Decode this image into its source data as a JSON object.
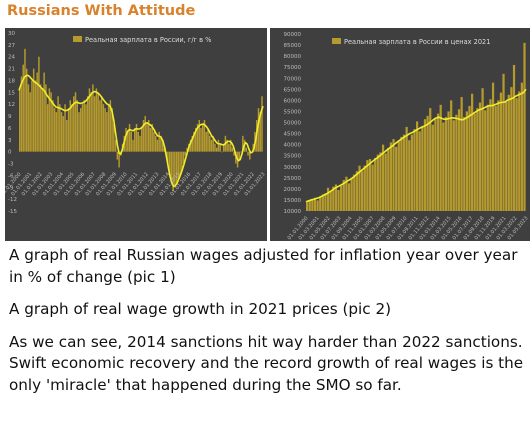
{
  "channel": {
    "name": "Russians With Attitude"
  },
  "colors": {
    "bar": "#b59a2e",
    "line": "#f0ee2a",
    "panel": "#3f3f3f",
    "axis_text": "#bdbdbd",
    "header": "#d9822b"
  },
  "chart_data": [
    {
      "type": "bar",
      "legend": "Реальная зарплата в России, г/г в %",
      "legend_position": "top",
      "yticks": [
        30,
        27,
        24,
        21,
        18,
        15,
        12,
        9,
        6,
        3,
        0,
        -3,
        -6,
        -9,
        -12,
        -15
      ],
      "ylim": [
        -15,
        30
      ],
      "xtick_labels": [
        "01.01.2000",
        "01.01.2001",
        "01.01.2002",
        "01.01.2003",
        "01.01.2004",
        "01.01.2005",
        "01.01.2006",
        "01.01.2007",
        "01.01.2008",
        "01.01.2009",
        "01.01.2010",
        "01.01.2011",
        "01.01.2012",
        "01.01.2013",
        "01.01.2014",
        "01.01.2015",
        "01.01.2016",
        "01.01.2017",
        "01.01.2018",
        "01.01.2019",
        "01.01.2020",
        "01.01.2021",
        "01.01.2022",
        "01.01.2023"
      ],
      "grid": false,
      "series": [
        {
          "kind": "bar",
          "values": [
            16,
            19,
            22,
            26,
            21,
            17,
            15,
            18,
            21,
            18,
            20,
            24,
            17,
            16,
            20,
            17,
            12,
            16,
            15,
            13,
            11,
            10,
            14,
            12,
            10,
            9,
            12,
            8,
            11,
            13,
            12,
            14,
            15,
            13,
            10,
            11,
            12,
            13,
            12,
            14,
            16,
            15,
            17,
            14,
            16,
            15,
            13,
            14,
            12,
            11,
            10,
            12,
            13,
            11,
            7,
            3,
            -2,
            -4,
            -1,
            2,
            4,
            6,
            5,
            7,
            5,
            3,
            6,
            7,
            5,
            4,
            6,
            8,
            9,
            7,
            8,
            6,
            7,
            5,
            4,
            3,
            5,
            4,
            3,
            1,
            -1,
            -3,
            -6,
            -8,
            -10,
            -9,
            -8,
            -7,
            -6,
            -5,
            -3,
            -1,
            1,
            2,
            3,
            4,
            5,
            6,
            7,
            8,
            6,
            7,
            8,
            5,
            6,
            4,
            3,
            4,
            2,
            1,
            3,
            2,
            0,
            2,
            4,
            3,
            2,
            3,
            1,
            -1,
            -3,
            -4,
            -2,
            0,
            4,
            3,
            1,
            -1,
            -2,
            0,
            2,
            5,
            8,
            11,
            10,
            14
          ]
        },
        {
          "kind": "line",
          "values": [
            15.5,
            16.8,
            17.9,
            18.8,
            19.2,
            19.3,
            19.0,
            18.5,
            18.0,
            17.6,
            17.3,
            16.9,
            16.5,
            16.0,
            15.6,
            15.0,
            14.2,
            13.6,
            13.0,
            12.4,
            11.8,
            11.3,
            11.2,
            11.0,
            10.9,
            10.6,
            10.4,
            10.4,
            10.6,
            10.9,
            11.5,
            12.0,
            12.4,
            12.5,
            12.3,
            12.2,
            12.3,
            12.5,
            12.8,
            13.3,
            13.9,
            14.5,
            15.0,
            15.2,
            15.1,
            14.8,
            14.4,
            13.8,
            13.2,
            12.6,
            12.1,
            11.9,
            11.4,
            10.2,
            7.9,
            4.8,
            1.8,
            -0.4,
            -0.6,
            0.8,
            2.6,
            4.2,
            5.2,
            5.6,
            5.4,
            5.3,
            5.6,
            5.8,
            5.7,
            5.8,
            6.1,
            6.7,
            7.2,
            7.3,
            7.0,
            6.7,
            6.2,
            5.5,
            4.6,
            4.0,
            3.9,
            3.6,
            2.7,
            1.1,
            -1.3,
            -3.8,
            -6.2,
            -7.8,
            -8.8,
            -8.6,
            -8.0,
            -7.0,
            -5.9,
            -4.6,
            -3.2,
            -1.6,
            0.0,
            1.4,
            2.5,
            3.5,
            4.5,
            5.5,
            6.2,
            6.7,
            6.9,
            7.0,
            6.7,
            6.2,
            5.5,
            4.6,
            3.8,
            3.3,
            2.6,
            2.1,
            2.0,
            1.9,
            1.7,
            1.8,
            2.3,
            2.6,
            2.6,
            2.3,
            1.5,
            0.0,
            -1.5,
            -2.3,
            -2.0,
            -0.6,
            1.3,
            2.3,
            1.9,
            0.6,
            -0.3,
            -0.1,
            1.1,
            3.4,
            6.2,
            8.5,
            10.2,
            11.5
          ]
        }
      ]
    },
    {
      "type": "bar",
      "legend": "Реальная зарплата в России в ценах 2021",
      "legend_position": "top",
      "yticks": [
        90000,
        85000,
        80000,
        75000,
        70000,
        65000,
        60000,
        55000,
        50000,
        45000,
        40000,
        35000,
        30000,
        25000,
        20000,
        15000,
        10000
      ],
      "ylim": [
        10000,
        90000
      ],
      "xtick_labels": [
        "01.01.2000",
        "01.03.2001",
        "01.05.2002",
        "01.07.2003",
        "01.09.2004",
        "01.11.2005",
        "01.01.2007",
        "01.03.2008",
        "01.05.2009",
        "01.07.2010",
        "01.09.2011",
        "01.11.2012",
        "01.01.2014",
        "01.03.2015",
        "01.05.2016",
        "01.07.2017",
        "01.09.2018",
        "01.11.2019",
        "01.01.2021",
        "01.03.2022",
        "01.05.2023"
      ],
      "grid": false,
      "series": [
        {
          "kind": "bar",
          "values": [
            14000,
            14500,
            15500,
            16000,
            14800,
            16500,
            17500,
            18000,
            20500,
            19000,
            21000,
            22000,
            19500,
            21500,
            24000,
            25500,
            22500,
            25000,
            26500,
            28000,
            30500,
            28000,
            30500,
            33000,
            33500,
            31000,
            34000,
            35500,
            36500,
            40000,
            36000,
            38500,
            41000,
            42500,
            39000,
            41500,
            43500,
            44500,
            48000,
            42000,
            44500,
            47000,
            50500,
            46000,
            48500,
            51500,
            53000,
            56500,
            49000,
            51500,
            54000,
            58000,
            50000,
            52500,
            55000,
            60000,
            51000,
            53500,
            56000,
            61500,
            52500,
            55000,
            57500,
            63000,
            54000,
            56500,
            59000,
            65500,
            55500,
            58000,
            60500,
            68000,
            57500,
            60000,
            63500,
            72000,
            59500,
            62500,
            66000,
            76000,
            61000,
            64000,
            68000,
            86000
          ]
        },
        {
          "kind": "line",
          "values": [
            14200,
            14600,
            15000,
            15300,
            15700,
            16100,
            16700,
            17300,
            17900,
            18700,
            19500,
            20400,
            21000,
            21600,
            22300,
            23100,
            23800,
            24500,
            25400,
            26400,
            27400,
            28400,
            29400,
            30400,
            31300,
            32300,
            33300,
            34100,
            35100,
            36100,
            37000,
            38000,
            38900,
            39800,
            40800,
            41700,
            42500,
            43400,
            44100,
            44900,
            45400,
            46100,
            46800,
            47500,
            48000,
            48600,
            49300,
            50200,
            51200,
            52000,
            52400,
            52000,
            51500,
            51500,
            51800,
            52100,
            52000,
            51800,
            51400,
            51200,
            51700,
            52400,
            53200,
            54000,
            54800,
            55500,
            56000,
            56500,
            57100,
            57600,
            57600,
            57900,
            58400,
            58900,
            59100,
            59200,
            60100,
            60500,
            61000,
            61800,
            62400,
            62900,
            63500,
            65000
          ]
        }
      ]
    }
  ],
  "post": {
    "p1": "A graph of real Russian wages adjusted for inflation year over year in % of change (pic 1)",
    "p2": "A graph of real wage growth in 2021 prices (pic 2)",
    "p3": "As we can see, 2014 sanctions hit way harder than 2022 sanctions. Swift economic recovery and the record growth of real wages is the only 'miracle' that happened during the SMO so far."
  }
}
